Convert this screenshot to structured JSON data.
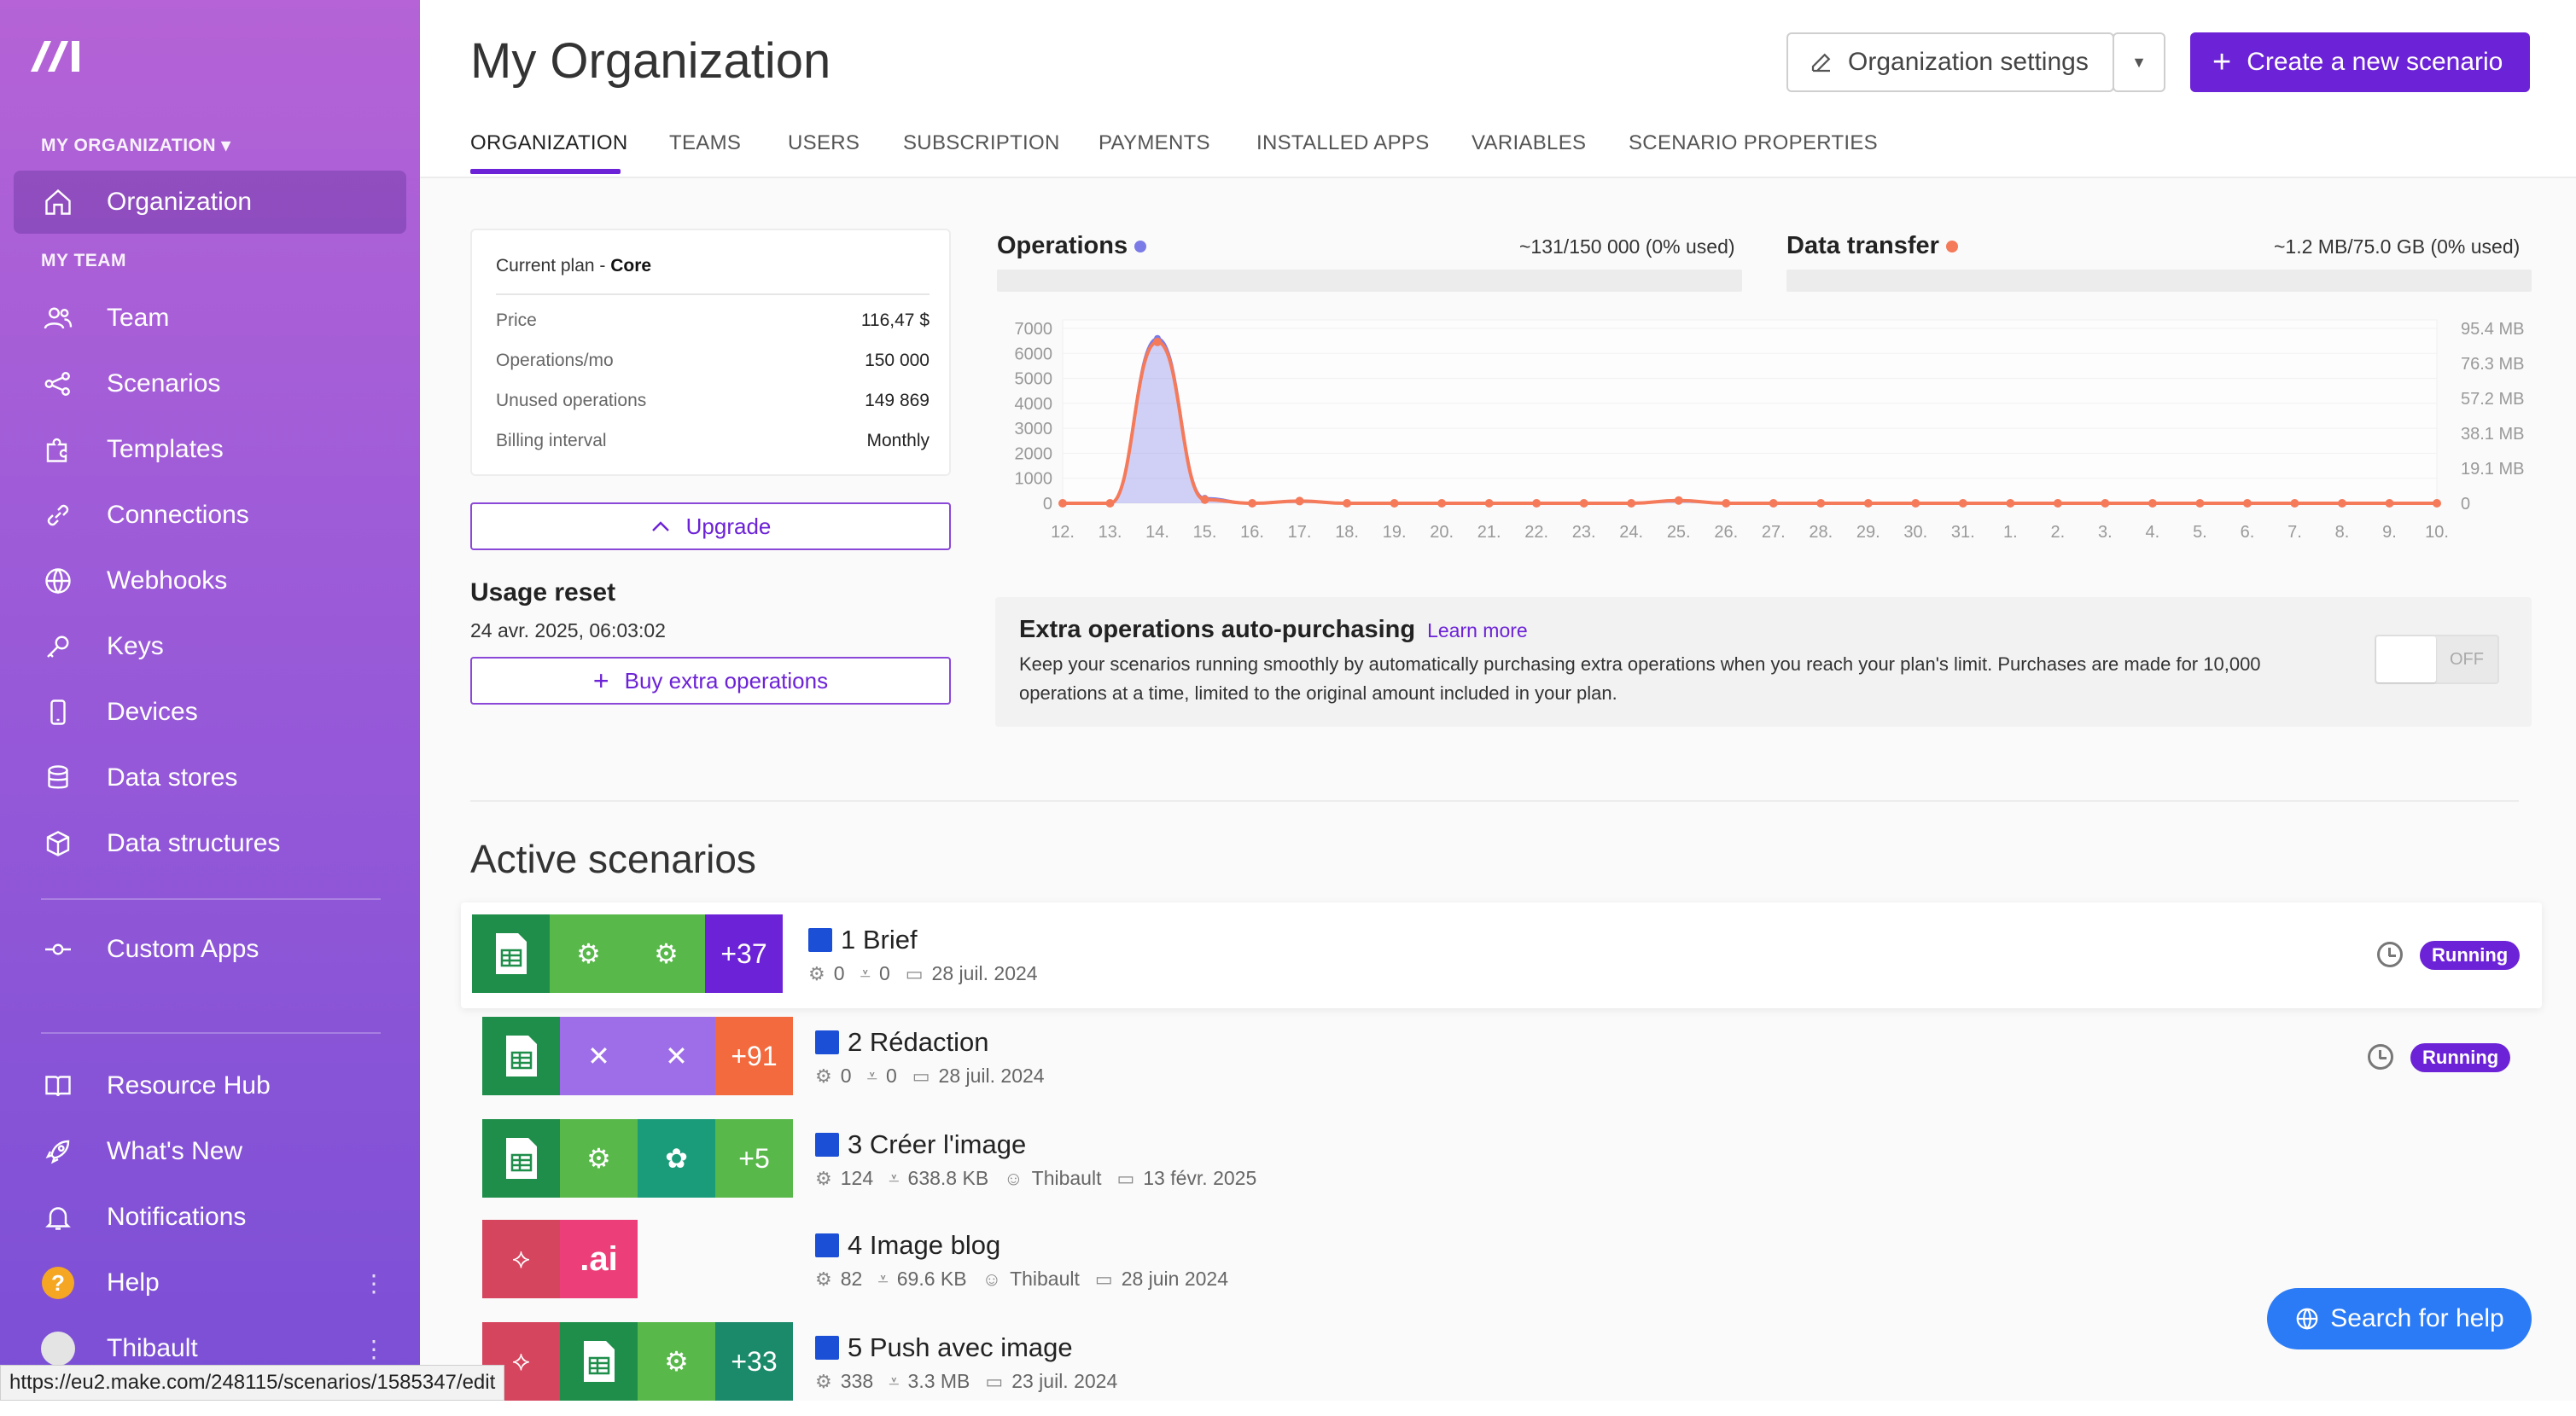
{
  "sidebar": {
    "org_section": "MY ORGANIZATION",
    "team_section": "MY TEAM",
    "items": [
      {
        "label": "Organization",
        "icon": "home-icon"
      },
      {
        "label": "Team",
        "icon": "users-icon"
      },
      {
        "label": "Scenarios",
        "icon": "share-icon"
      },
      {
        "label": "Templates",
        "icon": "puzzle-icon"
      },
      {
        "label": "Connections",
        "icon": "link-icon"
      },
      {
        "label": "Webhooks",
        "icon": "globe-icon"
      },
      {
        "label": "Keys",
        "icon": "key-icon"
      },
      {
        "label": "Devices",
        "icon": "device-icon"
      },
      {
        "label": "Data stores",
        "icon": "database-icon"
      },
      {
        "label": "Data structures",
        "icon": "cube-icon"
      },
      {
        "label": "Custom Apps",
        "icon": "commit-icon"
      },
      {
        "label": "Resource Hub",
        "icon": "book-icon"
      },
      {
        "label": "What's New",
        "icon": "rocket-icon"
      },
      {
        "label": "Notifications",
        "icon": "bell-icon"
      },
      {
        "label": "Help",
        "icon": "help-icon"
      },
      {
        "label": "Thibault",
        "icon": "avatar-icon"
      }
    ]
  },
  "header": {
    "title": "My Organization",
    "org_settings": "Organization settings",
    "create_scenario": "Create a new scenario",
    "tabs": [
      "ORGANIZATION",
      "TEAMS",
      "USERS",
      "SUBSCRIPTION",
      "PAYMENTS",
      "INSTALLED APPS",
      "VARIABLES",
      "SCENARIO PROPERTIES"
    ]
  },
  "plan": {
    "label": "Current plan - ",
    "name": "Core",
    "rows": [
      {
        "k": "Price",
        "v": "116,47 $"
      },
      {
        "k": "Operations/mo",
        "v": "150 000"
      },
      {
        "k": "Unused operations",
        "v": "149 869"
      },
      {
        "k": "Billing interval",
        "v": "Monthly"
      }
    ],
    "upgrade": "Upgrade",
    "usage_reset_title": "Usage reset",
    "usage_reset_date": "24 avr. 2025, 06:03:02",
    "buy_extra": "Buy extra operations"
  },
  "colors": {
    "accent": "#6c22d6",
    "operations": "#7b7be8",
    "data_transfer": "#f47a5a",
    "search_help": "#2b7bf6"
  },
  "chart_data": {
    "type": "line",
    "ops_title": "Operations",
    "ops_usage": "~131/150 000 (0% used)",
    "dt_title": "Data transfer",
    "dt_usage": "~1.2 MB/75.0 GB (0% used)",
    "x": [
      "12.",
      "13.",
      "14.",
      "15.",
      "16.",
      "17.",
      "18.",
      "19.",
      "20.",
      "21.",
      "22.",
      "23.",
      "24.",
      "25.",
      "26.",
      "27.",
      "28.",
      "29.",
      "30.",
      "31.",
      "1.",
      "2.",
      "3.",
      "4.",
      "5.",
      "6.",
      "7.",
      "8.",
      "9.",
      "10."
    ],
    "y_left_ticks": [
      "7000",
      "6000",
      "5000",
      "4000",
      "3000",
      "2000",
      "1000",
      "0"
    ],
    "y_right_ticks": [
      "95.4 MB",
      "76.3 MB",
      "57.2 MB",
      "38.1 MB",
      "19.1 MB",
      "0"
    ],
    "ylim_left": [
      0,
      7000
    ],
    "ylim_right_mb": [
      0,
      95.4
    ],
    "series": [
      {
        "name": "Operations",
        "color": "#7b7be8",
        "values": [
          0,
          0,
          6600,
          200,
          0,
          100,
          0,
          0,
          0,
          0,
          0,
          0,
          0,
          100,
          0,
          0,
          0,
          0,
          0,
          0,
          0,
          0,
          0,
          0,
          0,
          0,
          0,
          0,
          0,
          0
        ]
      },
      {
        "name": "Data transfer",
        "color": "#f47a5a",
        "values_mb": [
          0,
          0,
          88,
          2,
          0,
          1.2,
          0,
          0,
          0,
          0,
          0,
          0,
          0,
          1.5,
          0,
          0,
          0,
          0,
          0,
          0,
          0,
          0,
          0,
          0,
          0,
          0,
          0,
          0,
          0,
          0
        ]
      }
    ]
  },
  "extra": {
    "title": "Extra operations auto-purchasing",
    "learn_more": "Learn more",
    "desc": "Keep your scenarios running smoothly by automatically purchasing extra operations when you reach your plan's limit. Purchases are made for 10,000 operations at a time, limited to the original amount included in your plan.",
    "toggle": "OFF"
  },
  "active_title": "Active scenarios",
  "scenarios": [
    {
      "name": "1 Brief",
      "ops": "0",
      "data": "0",
      "date": "28 juil. 2024",
      "more": "+37",
      "status": "Running"
    },
    {
      "name": "2 Rédaction",
      "ops": "0",
      "data": "0",
      "date": "28 juil. 2024",
      "more": "+91",
      "status": "Running"
    },
    {
      "name": "3 Créer l'image",
      "ops": "124",
      "data": "638.8 KB",
      "user": "Thibault",
      "date": "13 févr. 2025",
      "more": "+5"
    },
    {
      "name": "4 Image blog",
      "ops": "82",
      "data": "69.6 KB",
      "user": "Thibault",
      "date": "28 juin 2024",
      "ai": ".ai"
    },
    {
      "name": "5 Push avec image",
      "ops": "338",
      "data": "3.3 MB",
      "date": "23 juil. 2024",
      "more": "+33"
    }
  ],
  "search_help": "Search for help",
  "status_url": "https://eu2.make.com/248115/scenarios/1585347/edit"
}
